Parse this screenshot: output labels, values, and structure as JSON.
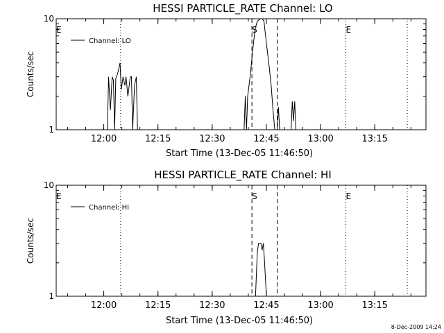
{
  "chart_data": [
    {
      "type": "line",
      "title": "HESSI PARTICLE_RATE Channel: LO",
      "xlabel": "Start Time (13-Dec-05 11:46:50)",
      "ylabel": "Counts/sec",
      "y_scale": "log",
      "ylim": [
        1,
        10
      ],
      "y_ticks": [
        "1",
        "10"
      ],
      "x_ticks": [
        "12:00",
        "12:15",
        "12:30",
        "12:45",
        "13:00",
        "13:15"
      ],
      "legend": {
        "placement": "top-left",
        "label": "Channel: LO"
      },
      "markers": [
        {
          "label": "E",
          "style": "dotted",
          "time": "11:46:50"
        },
        {
          "label": "",
          "style": "dotted",
          "time": "12:04:40"
        },
        {
          "label": "S",
          "style": "dashed",
          "time": "12:41:00"
        },
        {
          "label": "",
          "style": "dashed",
          "time": "12:48:00"
        },
        {
          "label": "E",
          "style": "dotted",
          "time": "13:07:00"
        },
        {
          "label": "",
          "style": "dotted",
          "time": "13:24:00"
        }
      ],
      "series": [
        {
          "name": "Channel: LO",
          "points": [
            [
              "12:01:00",
              1
            ],
            [
              "12:01:20",
              3
            ],
            [
              "12:01:50",
              1.5
            ],
            [
              "12:02:20",
              3
            ],
            [
              "12:02:40",
              2.8
            ],
            [
              "12:03:00",
              1
            ],
            [
              "12:03:20",
              2.9
            ],
            [
              "12:03:50",
              3.2
            ],
            [
              "12:04:30",
              4
            ],
            [
              "12:04:50",
              2.3
            ],
            [
              "12:05:20",
              3
            ],
            [
              "12:05:50",
              2.5
            ],
            [
              "12:06:10",
              3
            ],
            [
              "12:06:40",
              2
            ],
            [
              "12:07:20",
              3
            ],
            [
              "12:07:40",
              3
            ],
            [
              "12:08:00",
              1
            ],
            [
              "12:08:30",
              2.5
            ],
            [
              "12:09:00",
              3
            ],
            [
              "12:09:20",
              1
            ],
            [
              "12:38:50",
              1
            ],
            [
              "12:39:10",
              2
            ],
            [
              "12:39:30",
              1
            ],
            [
              "12:39:50",
              2
            ],
            [
              "12:40:30",
              3
            ],
            [
              "12:41:10",
              5
            ],
            [
              "12:41:50",
              8
            ],
            [
              "12:42:30",
              9.5
            ],
            [
              "12:43:20",
              10
            ],
            [
              "12:43:50",
              10
            ],
            [
              "12:44:20",
              9.5
            ],
            [
              "12:45:00",
              6
            ],
            [
              "12:45:40",
              4
            ],
            [
              "12:46:20",
              2.5
            ],
            [
              "12:46:50",
              1.5
            ],
            [
              "12:47:20",
              1
            ],
            [
              "12:48:00",
              1
            ],
            [
              "12:48:20",
              1.6
            ],
            [
              "12:48:40",
              1
            ],
            [
              "12:51:50",
              1
            ],
            [
              "12:52:10",
              1.8
            ],
            [
              "12:52:30",
              1.2
            ],
            [
              "12:52:50",
              1.8
            ],
            [
              "12:53:10",
              1
            ]
          ]
        }
      ]
    },
    {
      "type": "line",
      "title": "HESSI PARTICLE_RATE Channel: HI",
      "xlabel": "Start Time (13-Dec-05 11:46:50)",
      "ylabel": "Counts/sec",
      "y_scale": "log",
      "ylim": [
        1,
        10
      ],
      "y_ticks": [
        "1",
        "10"
      ],
      "x_ticks": [
        "12:00",
        "12:15",
        "12:30",
        "12:45",
        "13:00",
        "13:15"
      ],
      "legend": {
        "placement": "top-left",
        "label": "Channel: HI"
      },
      "markers": [
        {
          "label": "E",
          "style": "dotted",
          "time": "11:46:50"
        },
        {
          "label": "",
          "style": "dotted",
          "time": "12:04:40"
        },
        {
          "label": "S",
          "style": "dashed",
          "time": "12:41:00"
        },
        {
          "label": "",
          "style": "dashed",
          "time": "12:48:00"
        },
        {
          "label": "E",
          "style": "dotted",
          "time": "13:07:00"
        },
        {
          "label": "",
          "style": "dotted",
          "time": "13:24:00"
        }
      ],
      "series": [
        {
          "name": "Channel: HI",
          "points": [
            [
              "12:42:00",
              1
            ],
            [
              "12:42:30",
              2.5
            ],
            [
              "12:42:50",
              3
            ],
            [
              "12:43:30",
              3
            ],
            [
              "12:43:50",
              2.6
            ],
            [
              "12:44:10",
              3
            ],
            [
              "12:44:30",
              2
            ],
            [
              "12:45:00",
              1
            ]
          ]
        }
      ]
    }
  ],
  "footer": {
    "date_stamp": "8-Dec-2009 14:24"
  }
}
